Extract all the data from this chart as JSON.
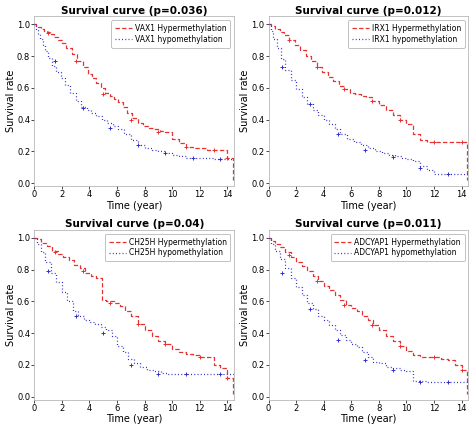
{
  "plots": [
    {
      "title": "Survival curve (p=0.036)",
      "legend_hyper": "VAX1 Hypermethylation",
      "legend_hypo": "VAX1 hypomethylation",
      "hyper_x": [
        0,
        0.15,
        0.3,
        0.5,
        0.7,
        0.9,
        1.1,
        1.4,
        1.7,
        2.0,
        2.3,
        2.7,
        3.1,
        3.5,
        3.9,
        4.2,
        4.5,
        4.8,
        5.1,
        5.5,
        5.8,
        6.1,
        6.4,
        6.7,
        7.1,
        7.5,
        7.9,
        8.3,
        8.7,
        9.1,
        9.5,
        10.0,
        10.5,
        11.0,
        11.5,
        12.0,
        12.5,
        13.0,
        13.5,
        14.0,
        14.4
      ],
      "hyper_y": [
        1.0,
        0.99,
        0.98,
        0.97,
        0.96,
        0.95,
        0.94,
        0.92,
        0.9,
        0.88,
        0.85,
        0.81,
        0.77,
        0.73,
        0.69,
        0.66,
        0.63,
        0.6,
        0.57,
        0.55,
        0.53,
        0.51,
        0.48,
        0.44,
        0.41,
        0.38,
        0.36,
        0.35,
        0.34,
        0.33,
        0.32,
        0.28,
        0.25,
        0.23,
        0.22,
        0.22,
        0.21,
        0.21,
        0.21,
        0.16,
        0.02
      ],
      "hypo_x": [
        0,
        0.1,
        0.25,
        0.4,
        0.6,
        0.8,
        1.0,
        1.3,
        1.6,
        1.9,
        2.2,
        2.6,
        3.0,
        3.4,
        3.8,
        4.1,
        4.5,
        4.9,
        5.3,
        5.7,
        6.1,
        6.5,
        7.0,
        7.5,
        8.0,
        8.5,
        9.0,
        9.5,
        10.0,
        10.5,
        11.0,
        11.5,
        12.0,
        12.5,
        13.0,
        13.5,
        14.0,
        14.5
      ],
      "hypo_y": [
        1.0,
        0.97,
        0.94,
        0.91,
        0.87,
        0.83,
        0.79,
        0.74,
        0.7,
        0.66,
        0.62,
        0.57,
        0.52,
        0.48,
        0.46,
        0.44,
        0.42,
        0.4,
        0.38,
        0.36,
        0.34,
        0.31,
        0.27,
        0.24,
        0.22,
        0.21,
        0.2,
        0.19,
        0.18,
        0.17,
        0.16,
        0.16,
        0.16,
        0.16,
        0.15,
        0.15,
        0.15,
        0.15
      ],
      "hyper_censors_x": [
        1.0,
        3.0,
        5.0,
        7.0,
        9.0,
        11.0,
        13.0,
        14.0
      ],
      "hyper_censors_y": [
        0.945,
        0.77,
        0.56,
        0.4,
        0.32,
        0.23,
        0.21,
        0.16
      ],
      "hypo_censors_x": [
        1.5,
        3.5,
        5.5,
        7.5,
        9.5,
        11.5,
        13.5
      ],
      "hypo_censors_y": [
        0.77,
        0.47,
        0.35,
        0.24,
        0.19,
        0.16,
        0.15
      ]
    },
    {
      "title": "Survival curve (p=0.012)",
      "legend_hyper": "IRX1 Hypermethylation",
      "legend_hypo": "IRX1 hypomethylation",
      "hyper_x": [
        0,
        0.2,
        0.5,
        0.8,
        1.1,
        1.5,
        1.9,
        2.3,
        2.7,
        3.1,
        3.5,
        3.9,
        4.3,
        4.7,
        5.1,
        5.5,
        5.9,
        6.3,
        6.7,
        7.1,
        7.5,
        8.0,
        8.5,
        9.0,
        9.5,
        10.0,
        10.5,
        11.0,
        11.5,
        12.0,
        12.5,
        13.0,
        13.5,
        14.0,
        14.4
      ],
      "hyper_y": [
        1.0,
        0.99,
        0.97,
        0.95,
        0.93,
        0.9,
        0.87,
        0.84,
        0.8,
        0.77,
        0.73,
        0.7,
        0.67,
        0.64,
        0.61,
        0.59,
        0.57,
        0.56,
        0.55,
        0.54,
        0.52,
        0.49,
        0.46,
        0.43,
        0.4,
        0.37,
        0.31,
        0.27,
        0.26,
        0.26,
        0.26,
        0.26,
        0.26,
        0.26,
        0.02
      ],
      "hypo_x": [
        0,
        0.15,
        0.35,
        0.6,
        0.9,
        1.2,
        1.6,
        2.0,
        2.4,
        2.8,
        3.2,
        3.6,
        4.0,
        4.4,
        4.8,
        5.2,
        5.7,
        6.2,
        6.7,
        7.2,
        7.7,
        8.2,
        8.7,
        9.2,
        9.7,
        10.0,
        10.5,
        11.0,
        11.5,
        12.0,
        12.5,
        13.0,
        13.5,
        14.0,
        14.5
      ],
      "hypo_y": [
        1.0,
        0.96,
        0.91,
        0.85,
        0.78,
        0.71,
        0.65,
        0.59,
        0.54,
        0.5,
        0.46,
        0.43,
        0.4,
        0.37,
        0.34,
        0.31,
        0.28,
        0.26,
        0.24,
        0.22,
        0.2,
        0.19,
        0.18,
        0.17,
        0.16,
        0.15,
        0.14,
        0.11,
        0.08,
        0.06,
        0.06,
        0.06,
        0.06,
        0.06,
        0.06
      ],
      "hyper_censors_x": [
        1.5,
        3.5,
        5.5,
        7.5,
        9.5,
        12.0,
        14.0
      ],
      "hyper_censors_y": [
        0.9,
        0.73,
        0.59,
        0.52,
        0.4,
        0.26,
        0.26
      ],
      "hypo_censors_x": [
        1.0,
        3.0,
        5.0,
        7.0,
        9.0,
        11.0,
        13.0
      ],
      "hypo_censors_y": [
        0.73,
        0.5,
        0.31,
        0.21,
        0.165,
        0.095,
        0.06
      ]
    },
    {
      "title": "Survival curve (p=0.04)",
      "legend_hyper": "CH25H Hypermethylation",
      "legend_hypo": "CH25H hypomethylation",
      "hyper_x": [
        0,
        0.2,
        0.5,
        0.9,
        1.3,
        1.7,
        2.1,
        2.5,
        2.9,
        3.3,
        3.7,
        4.1,
        4.5,
        4.9,
        5.2,
        5.5,
        5.8,
        6.2,
        6.6,
        7.0,
        7.5,
        8.0,
        8.5,
        9.0,
        9.5,
        10.0,
        10.5,
        11.0,
        11.5,
        12.0,
        12.5,
        13.0,
        13.5,
        14.0,
        14.4
      ],
      "hyper_y": [
        1.0,
        0.99,
        0.97,
        0.95,
        0.92,
        0.9,
        0.88,
        0.86,
        0.83,
        0.81,
        0.78,
        0.76,
        0.75,
        0.61,
        0.6,
        0.6,
        0.59,
        0.57,
        0.54,
        0.51,
        0.46,
        0.42,
        0.38,
        0.35,
        0.33,
        0.3,
        0.28,
        0.27,
        0.26,
        0.25,
        0.25,
        0.2,
        0.18,
        0.12,
        0.02
      ],
      "hypo_x": [
        0,
        0.2,
        0.5,
        0.8,
        1.2,
        1.6,
        2.0,
        2.4,
        2.8,
        3.2,
        3.6,
        4.0,
        4.4,
        4.8,
        5.2,
        5.6,
        6.0,
        6.4,
        6.8,
        7.2,
        7.7,
        8.2,
        8.7,
        9.2,
        9.7,
        10.0,
        10.5,
        11.0,
        11.5,
        12.0,
        12.5,
        13.0,
        13.5,
        14.0,
        14.5
      ],
      "hypo_y": [
        1.0,
        0.96,
        0.91,
        0.85,
        0.78,
        0.72,
        0.66,
        0.6,
        0.54,
        0.51,
        0.48,
        0.47,
        0.46,
        0.44,
        0.42,
        0.38,
        0.32,
        0.28,
        0.24,
        0.21,
        0.19,
        0.17,
        0.16,
        0.15,
        0.14,
        0.14,
        0.14,
        0.14,
        0.14,
        0.14,
        0.14,
        0.14,
        0.14,
        0.14,
        0.14
      ],
      "hyper_censors_x": [
        1.5,
        3.5,
        5.5,
        7.5,
        9.5,
        12.0,
        14.0
      ],
      "hyper_censors_y": [
        0.91,
        0.79,
        0.59,
        0.46,
        0.33,
        0.25,
        0.12
      ],
      "hypo_censors_x": [
        1.0,
        3.0,
        5.0,
        7.0,
        9.0,
        11.0,
        13.5
      ],
      "hypo_censors_y": [
        0.79,
        0.51,
        0.4,
        0.2,
        0.145,
        0.14,
        0.14
      ]
    },
    {
      "title": "Survival curve (p=0.011)",
      "legend_hyper": "ADCYAP1 Hypermethylation",
      "legend_hypo": "ADCYAP1 hypomethylation",
      "hyper_x": [
        0,
        0.2,
        0.5,
        0.8,
        1.2,
        1.6,
        2.0,
        2.4,
        2.8,
        3.2,
        3.6,
        4.0,
        4.4,
        4.8,
        5.2,
        5.6,
        6.0,
        6.4,
        6.8,
        7.2,
        7.6,
        8.0,
        8.5,
        9.0,
        9.5,
        10.0,
        10.5,
        11.0,
        11.5,
        12.0,
        12.5,
        13.0,
        13.5,
        14.0,
        14.4
      ],
      "hyper_y": [
        1.0,
        0.98,
        0.96,
        0.94,
        0.91,
        0.88,
        0.85,
        0.82,
        0.79,
        0.76,
        0.73,
        0.7,
        0.67,
        0.64,
        0.61,
        0.58,
        0.56,
        0.54,
        0.51,
        0.48,
        0.45,
        0.42,
        0.38,
        0.35,
        0.32,
        0.29,
        0.26,
        0.25,
        0.25,
        0.25,
        0.24,
        0.23,
        0.2,
        0.17,
        0.02
      ],
      "hypo_x": [
        0,
        0.2,
        0.5,
        0.8,
        1.2,
        1.6,
        2.0,
        2.4,
        2.8,
        3.2,
        3.6,
        4.0,
        4.4,
        4.8,
        5.2,
        5.6,
        6.0,
        6.4,
        6.8,
        7.2,
        7.6,
        8.0,
        8.5,
        9.0,
        9.5,
        10.0,
        10.5,
        11.0,
        11.5,
        12.0,
        12.5,
        13.0,
        13.5,
        14.0,
        14.5
      ],
      "hypo_y": [
        1.0,
        0.96,
        0.92,
        0.87,
        0.81,
        0.75,
        0.69,
        0.64,
        0.59,
        0.55,
        0.51,
        0.48,
        0.45,
        0.42,
        0.39,
        0.36,
        0.33,
        0.31,
        0.28,
        0.25,
        0.22,
        0.21,
        0.19,
        0.18,
        0.17,
        0.16,
        0.1,
        0.1,
        0.09,
        0.09,
        0.09,
        0.09,
        0.09,
        0.09,
        0.09
      ],
      "hyper_censors_x": [
        1.5,
        3.5,
        5.5,
        7.5,
        9.5,
        12.0,
        14.0
      ],
      "hyper_censors_y": [
        0.89,
        0.73,
        0.58,
        0.45,
        0.32,
        0.25,
        0.17
      ],
      "hypo_censors_x": [
        1.0,
        3.0,
        5.0,
        7.0,
        9.0,
        11.0,
        13.0
      ],
      "hypo_censors_y": [
        0.78,
        0.55,
        0.36,
        0.23,
        0.17,
        0.095,
        0.09
      ]
    }
  ],
  "hyper_color": "#E83030",
  "hypo_color": "#3030CC",
  "xlim": [
    0,
    14.5
  ],
  "ylim": [
    0.0,
    1.0
  ],
  "xticks": [
    0,
    2,
    4,
    6,
    8,
    10,
    12,
    14
  ],
  "yticks": [
    0.0,
    0.2,
    0.4,
    0.6,
    0.8,
    1.0
  ],
  "xlabel": "Time (year)",
  "ylabel": "Survival rate",
  "title_fontsize": 7.5,
  "axis_label_fontsize": 7,
  "tick_fontsize": 6,
  "legend_fontsize": 5.5
}
